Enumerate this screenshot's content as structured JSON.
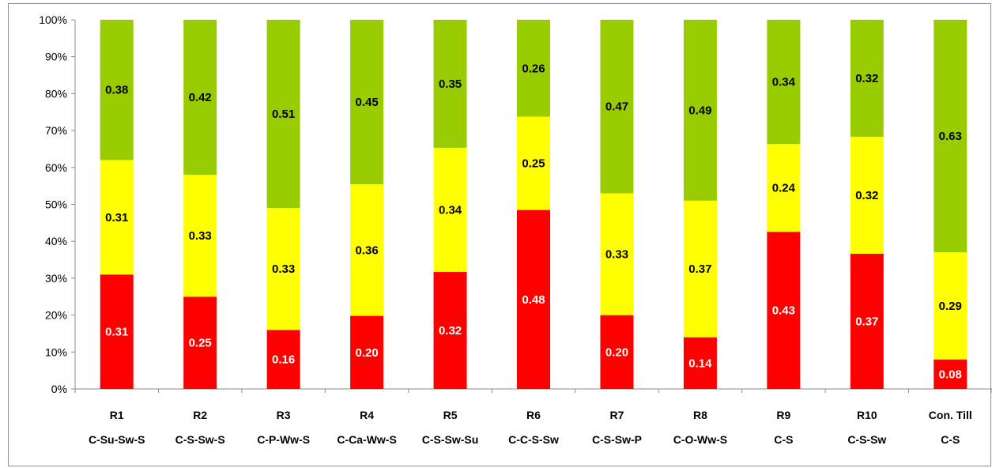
{
  "chart_data": {
    "type": "bar",
    "stacked": true,
    "normalized": true,
    "ylim": [
      0,
      100
    ],
    "yticks": [
      "0%",
      "10%",
      "20%",
      "30%",
      "40%",
      "50%",
      "60%",
      "70%",
      "80%",
      "90%",
      "100%"
    ],
    "grid": false,
    "legend": "none",
    "categories": [
      [
        "R1",
        "C-Su-Sw-S"
      ],
      [
        "R2",
        "C-S-Sw-S"
      ],
      [
        "R3",
        "C-P-Ww-S"
      ],
      [
        "R4",
        "C-Ca-Ww-S"
      ],
      [
        "R5",
        "C-S-Sw-Su"
      ],
      [
        "R6",
        "C-C-S-Sw"
      ],
      [
        "R7",
        "C-S-Sw-P"
      ],
      [
        "R8",
        "C-O-Ww-S"
      ],
      [
        "R9",
        "C-S"
      ],
      [
        "R10",
        "C-S-Sw"
      ],
      [
        "Con. Till",
        "C-S"
      ]
    ],
    "series": [
      {
        "color": "#ff0000",
        "label_color": "#ffffff",
        "values": [
          0.31,
          0.25,
          0.16,
          0.2,
          0.32,
          0.48,
          0.2,
          0.14,
          0.43,
          0.37,
          0.08
        ],
        "labels": [
          "0.31",
          "0.25",
          "0.16",
          "0.20",
          "0.32",
          "0.48",
          "0.20",
          "0.14",
          "0.43",
          "0.37",
          "0.08"
        ]
      },
      {
        "color": "#ffff00",
        "label_color": "#000000",
        "values": [
          0.31,
          0.33,
          0.33,
          0.36,
          0.34,
          0.25,
          0.33,
          0.37,
          0.24,
          0.32,
          0.29
        ],
        "labels": [
          "0.31",
          "0.33",
          "0.33",
          "0.36",
          "0.34",
          "0.25",
          "0.33",
          "0.37",
          "0.24",
          "0.32",
          "0.29"
        ]
      },
      {
        "color": "#99cc00",
        "label_color": "#000000",
        "values": [
          0.38,
          0.42,
          0.51,
          0.45,
          0.35,
          0.26,
          0.47,
          0.49,
          0.34,
          0.32,
          0.63
        ],
        "labels": [
          "0.38",
          "0.42",
          "0.51",
          "0.45",
          "0.35",
          "0.26",
          "0.47",
          "0.49",
          "0.34",
          "0.32",
          "0.63"
        ]
      }
    ]
  }
}
